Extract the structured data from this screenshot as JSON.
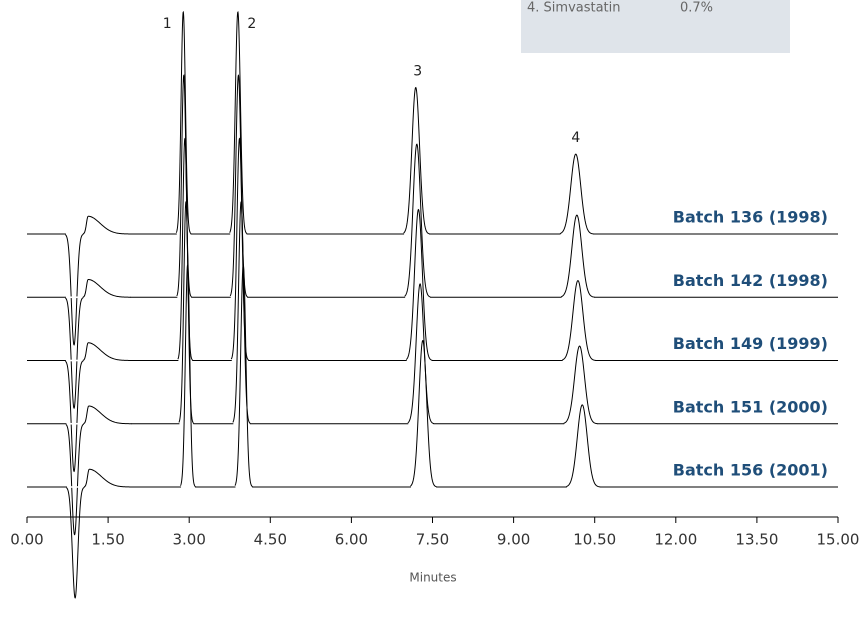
{
  "chart_data": {
    "type": "chromatogram",
    "x_label": "Minutes",
    "xlim": [
      0,
      15
    ],
    "xticks": [
      {
        "value": 0,
        "label": "0.00"
      },
      {
        "value": 1.5,
        "label": "1.50"
      },
      {
        "value": 3,
        "label": "3.00"
      },
      {
        "value": 4.5,
        "label": "4.50"
      },
      {
        "value": 6,
        "label": "6.00"
      },
      {
        "value": 7.5,
        "label": "7.50"
      },
      {
        "value": 9,
        "label": "9.00"
      },
      {
        "value": 10.5,
        "label": "10.50"
      },
      {
        "value": 12,
        "label": "12.00"
      },
      {
        "value": 13.5,
        "label": "13.50"
      },
      {
        "value": 15,
        "label": "15.00"
      }
    ],
    "ylim": [
      0,
      100
    ],
    "line_color": "#000000",
    "label_color": "#1f4e79",
    "peak_labels": [
      null,
      null,
      "1",
      "2",
      "3",
      "4"
    ],
    "series": [
      {
        "name": "Batch 136 (1998)",
        "x": [
          0.87,
          1.13,
          2.89,
          3.9,
          7.19,
          10.15
        ],
        "values": [
          -50,
          8,
          100,
          100,
          66,
          36
        ]
      },
      {
        "name": "Batch 142 (1998)",
        "x": [
          0.87,
          1.13,
          2.9,
          3.91,
          7.21,
          10.17
        ],
        "values": [
          -50,
          8,
          100,
          100,
          69,
          37
        ]
      },
      {
        "name": "Batch 149 (1999)",
        "x": [
          0.87,
          1.13,
          2.92,
          3.93,
          7.24,
          10.19
        ],
        "values": [
          -50,
          8,
          100,
          100,
          68,
          36
        ]
      },
      {
        "name": "Batch 151 (2000)",
        "x": [
          0.88,
          1.14,
          2.94,
          3.96,
          7.27,
          10.22
        ],
        "values": [
          -50,
          8,
          100,
          100,
          63,
          35
        ]
      },
      {
        "name": "Batch 156 (2001)",
        "x": [
          0.89,
          1.15,
          2.97,
          4.0,
          7.32,
          10.27
        ],
        "values": [
          -50,
          8,
          100,
          100,
          66,
          37
        ]
      }
    ],
    "note_box": {
      "name": "4. Simvastatin",
      "value": "0.7%"
    }
  }
}
